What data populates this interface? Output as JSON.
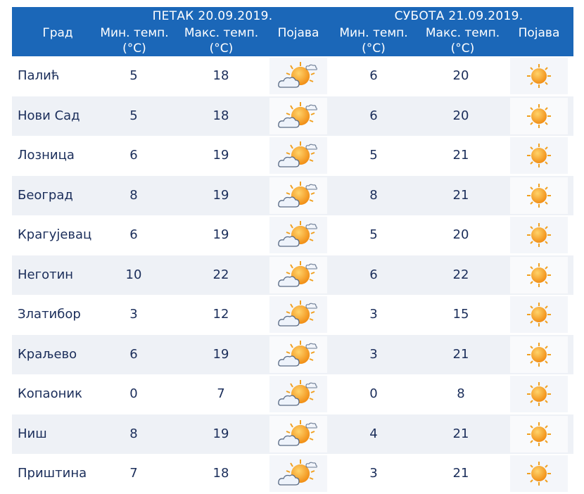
{
  "header": {
    "day1": "ПЕТАК  20.09.2019.",
    "day2": "СУБОТА  21.09.2019.",
    "col_city": "Град",
    "col_min": "Мин. темп.",
    "col_max": "Макс. темп.",
    "unit": "(°C)",
    "col_phen": "Појава"
  },
  "icons": {
    "day1": "partly-cloudy-icon",
    "day2": "sunny-icon"
  },
  "colors": {
    "header_bg": "#1b67b8",
    "row_shade": "#eef1f6",
    "text": "#1a2d5a",
    "sun": "#f5a623"
  },
  "rows": [
    {
      "city": "Палић",
      "min1": "5",
      "max1": "18",
      "min2": "6",
      "max2": "20"
    },
    {
      "city": "Нови Сад",
      "min1": "5",
      "max1": "18",
      "min2": "6",
      "max2": "20"
    },
    {
      "city": "Лозница",
      "min1": "6",
      "max1": "19",
      "min2": "5",
      "max2": "21"
    },
    {
      "city": "Београд",
      "min1": "8",
      "max1": "19",
      "min2": "8",
      "max2": "21"
    },
    {
      "city": "Крагујевац",
      "min1": "6",
      "max1": "19",
      "min2": "5",
      "max2": "20"
    },
    {
      "city": "Неготин",
      "min1": "10",
      "max1": "22",
      "min2": "6",
      "max2": "22"
    },
    {
      "city": "Златибор",
      "min1": "3",
      "max1": "12",
      "min2": "3",
      "max2": "15"
    },
    {
      "city": "Краљево",
      "min1": "6",
      "max1": "19",
      "min2": "3",
      "max2": "21"
    },
    {
      "city": "Копаоник",
      "min1": "0",
      "max1": "7",
      "min2": "0",
      "max2": "8"
    },
    {
      "city": "Ниш",
      "min1": "8",
      "max1": "19",
      "min2": "4",
      "max2": "21"
    },
    {
      "city": "Приштина",
      "min1": "7",
      "max1": "18",
      "min2": "3",
      "max2": "21"
    }
  ]
}
